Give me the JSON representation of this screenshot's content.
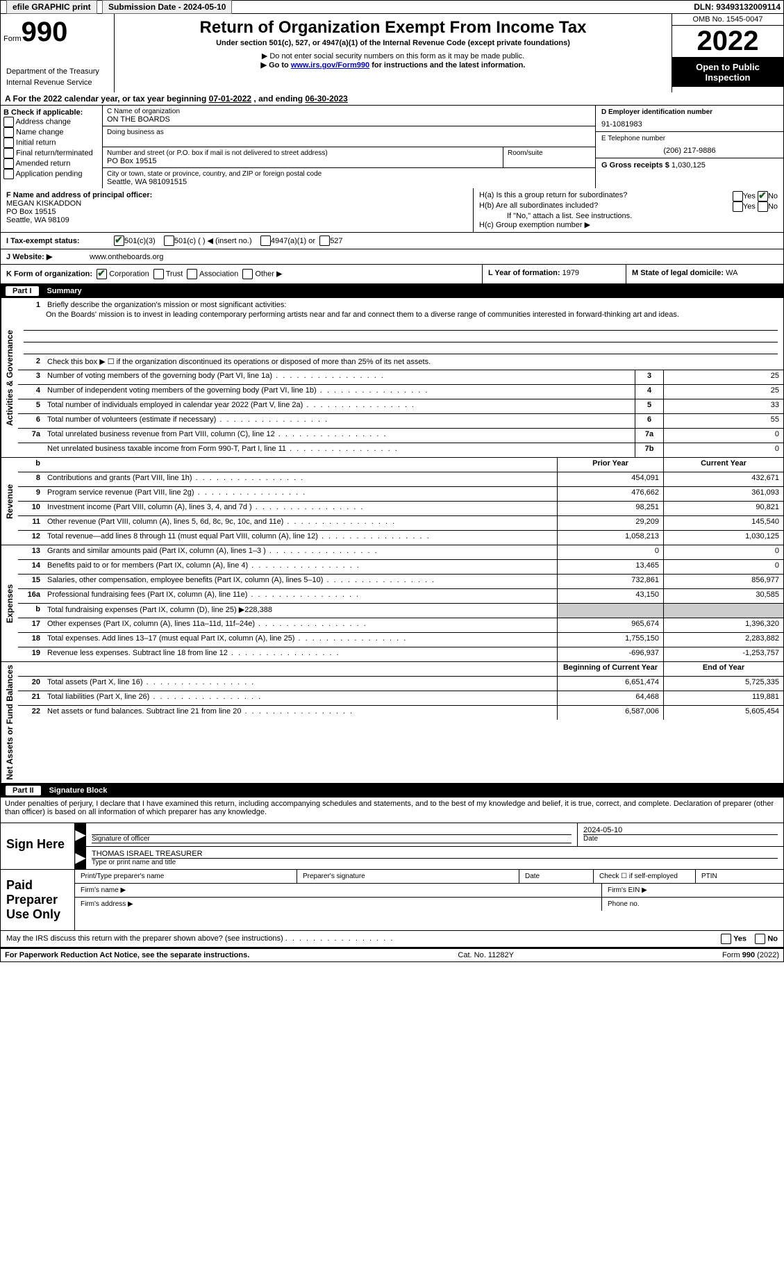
{
  "topbar": {
    "efile": "efile GRAPHIC print",
    "submission": "Submission Date - 2024-05-10",
    "dln": "DLN: 93493132009114"
  },
  "header": {
    "form_label": "Form",
    "form_number": "990",
    "title": "Return of Organization Exempt From Income Tax",
    "subtitle": "Under section 501(c), 527, or 4947(a)(1) of the Internal Revenue Code (except private foundations)",
    "note1": "▶ Do not enter social security numbers on this form as it may be made public.",
    "note2_pre": "▶ Go to ",
    "note2_link": "www.irs.gov/Form990",
    "note2_post": " for instructions and the latest information.",
    "dept": "Department of the Treasury",
    "irs": "Internal Revenue Service",
    "omb": "OMB No. 1545-0047",
    "year": "2022",
    "open": "Open to Public Inspection"
  },
  "line_a": {
    "prefix": "A For the 2022 calendar year, or tax year beginning ",
    "begin": "07-01-2022",
    "mid": "   , and ending ",
    "end": "06-30-2023"
  },
  "col_b": {
    "label": "B Check if applicable:",
    "opts": [
      "Address change",
      "Name change",
      "Initial return",
      "Final return/terminated",
      "Amended return",
      "Application pending"
    ]
  },
  "col_c": {
    "name_label": "C Name of organization",
    "name": "ON THE BOARDS",
    "dba_label": "Doing business as",
    "addr_label": "Number and street (or P.O. box if mail is not delivered to street address)",
    "room_label": "Room/suite",
    "addr": "PO Box 19515",
    "city_label": "City or town, state or province, country, and ZIP or foreign postal code",
    "city": "Seattle, WA  981091515"
  },
  "col_d": {
    "ein_label": "D Employer identification number",
    "ein": "91-1081983",
    "phone_label": "E Telephone number",
    "phone": "(206) 217-9886",
    "gross_label": "G Gross receipts $",
    "gross": "1,030,125"
  },
  "box_f": {
    "label": "F Name and address of principal officer:",
    "name": "MEGAN KISKADDON",
    "addr1": "PO Box 19515",
    "addr2": "Seattle, WA  98109",
    "ha": "H(a)  Is this a group return for subordinates?",
    "hb": "H(b)  Are all subordinates included?",
    "hb_note": "If \"No,\" attach a list. See instructions.",
    "hc": "H(c)  Group exemption number ▶",
    "yes": "Yes",
    "no": "No"
  },
  "row_i": {
    "label": "I   Tax-exempt status:",
    "opts": [
      "501(c)(3)",
      "501(c) (  ) ◀ (insert no.)",
      "4947(a)(1) or",
      "527"
    ]
  },
  "row_j": {
    "label": "J   Website: ▶",
    "value": "www.ontheboards.org"
  },
  "row_k": {
    "label": "K Form of organization:",
    "opts": [
      "Corporation",
      "Trust",
      "Association",
      "Other ▶"
    ],
    "l_label": "L Year of formation:",
    "l_val": "1979",
    "m_label": "M State of legal domicile:",
    "m_val": "WA"
  },
  "part1": {
    "label": "Part I",
    "title": "Summary"
  },
  "sections": {
    "activities": "Activities & Governance",
    "revenue": "Revenue",
    "expenses": "Expenses",
    "netassets": "Net Assets or Fund Balances"
  },
  "summary": {
    "line1_label": "Briefly describe the organization's mission or most significant activities:",
    "mission": "On the Boards' mission is to invest in leading contemporary performing artists near and far and connect them to a diverse range of communities interested in forward-thinking art and ideas.",
    "line2": "Check this box ▶ ☐  if the organization discontinued its operations or disposed of more than 25% of its net assets.",
    "rows_ag": [
      {
        "n": "3",
        "desc": "Number of voting members of the governing body (Part VI, line 1a)",
        "box": "3",
        "val": "25"
      },
      {
        "n": "4",
        "desc": "Number of independent voting members of the governing body (Part VI, line 1b)",
        "box": "4",
        "val": "25"
      },
      {
        "n": "5",
        "desc": "Total number of individuals employed in calendar year 2022 (Part V, line 2a)",
        "box": "5",
        "val": "33"
      },
      {
        "n": "6",
        "desc": "Total number of volunteers (estimate if necessary)",
        "box": "6",
        "val": "55"
      },
      {
        "n": "7a",
        "desc": "Total unrelated business revenue from Part VIII, column (C), line 12",
        "box": "7a",
        "val": "0"
      },
      {
        "n": "",
        "desc": "Net unrelated business taxable income from Form 990-T, Part I, line 11",
        "box": "7b",
        "val": "0"
      }
    ],
    "col_headers": {
      "b": "b",
      "prior": "Prior Year",
      "current": "Current Year"
    },
    "rows_rev": [
      {
        "n": "8",
        "desc": "Contributions and grants (Part VIII, line 1h)",
        "prior": "454,091",
        "cur": "432,671"
      },
      {
        "n": "9",
        "desc": "Program service revenue (Part VIII, line 2g)",
        "prior": "476,662",
        "cur": "361,093"
      },
      {
        "n": "10",
        "desc": "Investment income (Part VIII, column (A), lines 3, 4, and 7d )",
        "prior": "98,251",
        "cur": "90,821"
      },
      {
        "n": "11",
        "desc": "Other revenue (Part VIII, column (A), lines 5, 6d, 8c, 9c, 10c, and 11e)",
        "prior": "29,209",
        "cur": "145,540"
      },
      {
        "n": "12",
        "desc": "Total revenue—add lines 8 through 11 (must equal Part VIII, column (A), line 12)",
        "prior": "1,058,213",
        "cur": "1,030,125"
      }
    ],
    "rows_exp": [
      {
        "n": "13",
        "desc": "Grants and similar amounts paid (Part IX, column (A), lines 1–3 )",
        "prior": "0",
        "cur": "0"
      },
      {
        "n": "14",
        "desc": "Benefits paid to or for members (Part IX, column (A), line 4)",
        "prior": "13,465",
        "cur": "0"
      },
      {
        "n": "15",
        "desc": "Salaries, other compensation, employee benefits (Part IX, column (A), lines 5–10)",
        "prior": "732,861",
        "cur": "856,977"
      },
      {
        "n": "16a",
        "desc": "Professional fundraising fees (Part IX, column (A), line 11e)",
        "prior": "43,150",
        "cur": "30,585"
      },
      {
        "n": "b",
        "desc": "Total fundraising expenses (Part IX, column (D), line 25) ▶228,388",
        "prior": "",
        "cur": "",
        "shaded": true
      },
      {
        "n": "17",
        "desc": "Other expenses (Part IX, column (A), lines 11a–11d, 11f–24e)",
        "prior": "965,674",
        "cur": "1,396,320"
      },
      {
        "n": "18",
        "desc": "Total expenses. Add lines 13–17 (must equal Part IX, column (A), line 25)",
        "prior": "1,755,150",
        "cur": "2,283,882"
      },
      {
        "n": "19",
        "desc": "Revenue less expenses. Subtract line 18 from line 12",
        "prior": "-696,937",
        "cur": "-1,253,757"
      }
    ],
    "na_headers": {
      "begin": "Beginning of Current Year",
      "end": "End of Year"
    },
    "rows_na": [
      {
        "n": "20",
        "desc": "Total assets (Part X, line 16)",
        "prior": "6,651,474",
        "cur": "5,725,335"
      },
      {
        "n": "21",
        "desc": "Total liabilities (Part X, line 26)",
        "prior": "64,468",
        "cur": "119,881"
      },
      {
        "n": "22",
        "desc": "Net assets or fund balances. Subtract line 21 from line 20",
        "prior": "6,587,006",
        "cur": "5,605,454"
      }
    ]
  },
  "part2": {
    "label": "Part II",
    "title": "Signature Block"
  },
  "penalties": "Under penalties of perjury, I declare that I have examined this return, including accompanying schedules and statements, and to the best of my knowledge and belief, it is true, correct, and complete. Declaration of preparer (other than officer) is based on all information of which preparer has any knowledge.",
  "sign": {
    "label": "Sign Here",
    "sig_officer": "Signature of officer",
    "date": "Date",
    "date_val": "2024-05-10",
    "name": "THOMAS ISRAEL  TREASURER",
    "name_label": "Type or print name and title"
  },
  "preparer": {
    "label": "Paid Preparer Use Only",
    "print_name": "Print/Type preparer's name",
    "sig": "Preparer's signature",
    "date": "Date",
    "check": "Check ☐ if self-employed",
    "ptin": "PTIN",
    "firm_name": "Firm's name    ▶",
    "firm_ein": "Firm's EIN ▶",
    "firm_addr": "Firm's address ▶",
    "phone": "Phone no."
  },
  "discuss": {
    "text": "May the IRS discuss this return with the preparer shown above? (see instructions)",
    "yes": "Yes",
    "no": "No"
  },
  "footer": {
    "left": "For Paperwork Reduction Act Notice, see the separate instructions.",
    "mid": "Cat. No. 11282Y",
    "right": "Form 990 (2022)"
  }
}
